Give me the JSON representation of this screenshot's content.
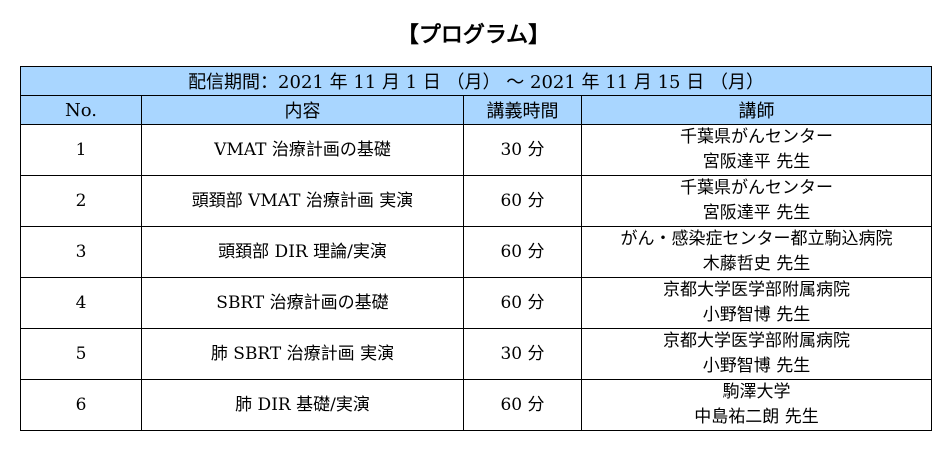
{
  "title": "【プログラム】",
  "period": "配信期間：2021 年 11 月 1 日 （月） ～ 2021 年 11 月 15 日 （月）",
  "headers": {
    "no": "No.",
    "content": "内容",
    "duration": "講義時間",
    "lecturer": "講師"
  },
  "rows": [
    {
      "no": "1",
      "content": "VMAT 治療計画の基礎",
      "duration": "30 分",
      "affiliation": "千葉県がんセンター",
      "name": "宮阪達平 先生"
    },
    {
      "no": "2",
      "content": "頭頚部 VMAT 治療計画 実演",
      "duration": "60 分",
      "affiliation": "千葉県がんセンター",
      "name": "宮阪達平 先生"
    },
    {
      "no": "3",
      "content": "頭頚部 DIR 理論/実演",
      "duration": "60 分",
      "affiliation": "がん・感染症センター都立駒込病院",
      "name": "木藤哲史 先生"
    },
    {
      "no": "4",
      "content": "SBRT 治療計画の基礎",
      "duration": "60 分",
      "affiliation": "京都大学医学部附属病院",
      "name": "小野智博 先生"
    },
    {
      "no": "5",
      "content": "肺 SBRT 治療計画 実演",
      "duration": "30 分",
      "affiliation": "京都大学医学部附属病院",
      "name": "小野智博 先生"
    },
    {
      "no": "6",
      "content": "肺 DIR 基礎/実演",
      "duration": "60 分",
      "affiliation": "駒澤大学",
      "name": "中島祐二朗 先生"
    }
  ]
}
